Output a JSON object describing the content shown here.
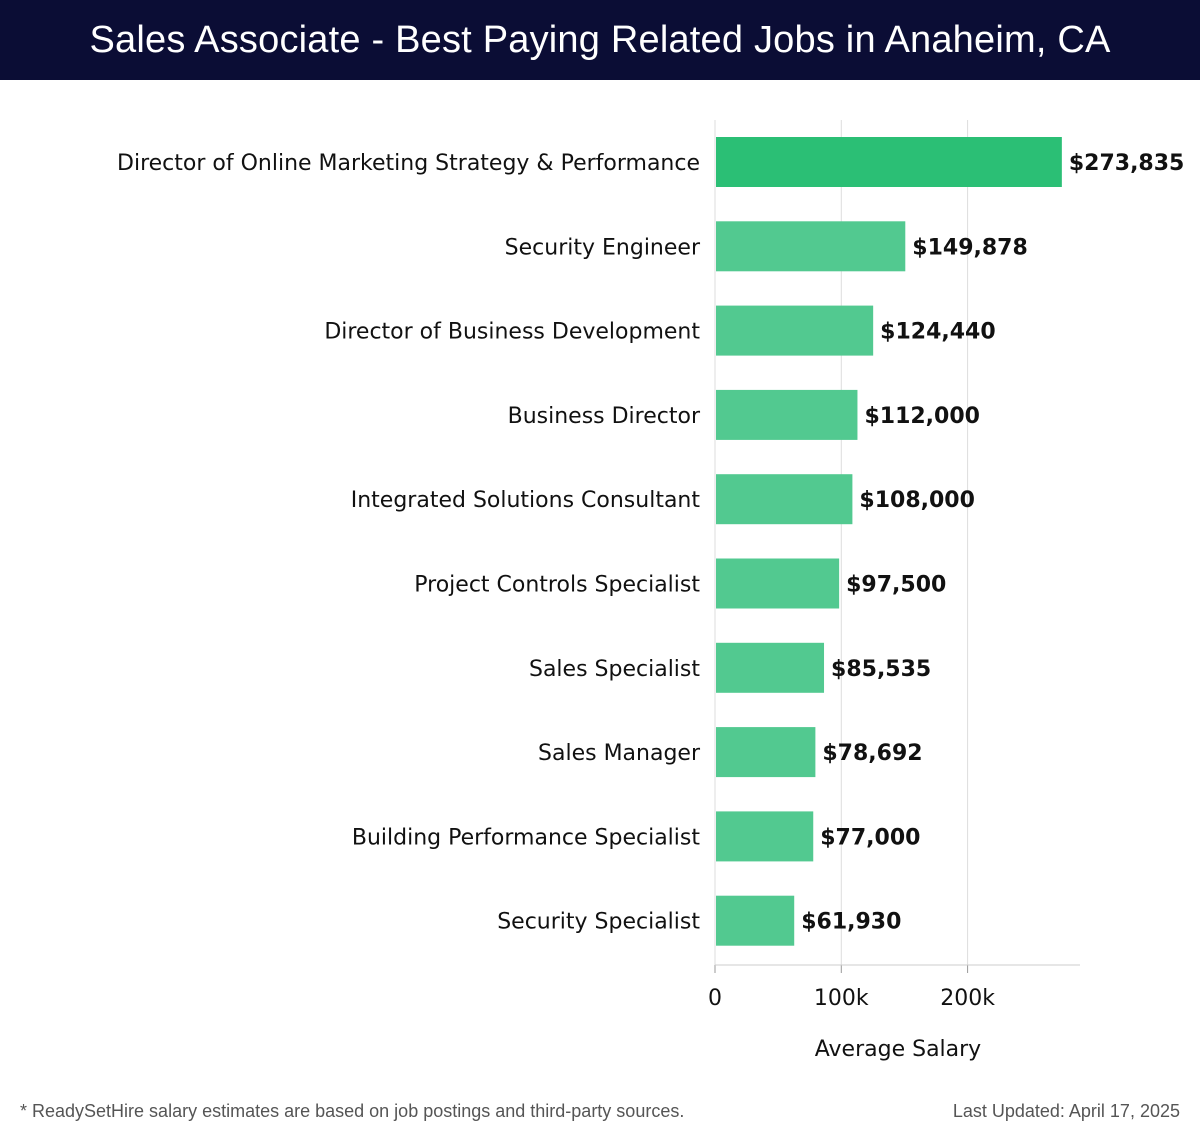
{
  "header": {
    "title": "Sales Associate - Best Paying Related Jobs in Anaheim, CA"
  },
  "colors": {
    "header_bg": "#0b0d35",
    "bar_top": "#2bbf75",
    "bar_other": "#52c990",
    "gridline": "#dddddd"
  },
  "chart_data": {
    "type": "bar",
    "orientation": "horizontal",
    "title": "Sales Associate - Best Paying Related Jobs in Anaheim, CA",
    "xlabel": "Average Salary",
    "ylabel": "",
    "xlim": [
      0,
      289000
    ],
    "x_ticks": [
      0,
      100000,
      200000
    ],
    "x_tick_labels": [
      "0",
      "100k",
      "200k"
    ],
    "grid": true,
    "categories": [
      "Director of Online Marketing Strategy & Performance",
      "Security Engineer",
      "Director of Business Development",
      "Business Director",
      "Integrated Solutions Consultant",
      "Project Controls Specialist",
      "Sales Specialist",
      "Sales Manager",
      "Building Performance Specialist",
      "Security Specialist"
    ],
    "values": [
      273835,
      149878,
      124440,
      112000,
      108000,
      97500,
      85535,
      78692,
      77000,
      61930
    ],
    "value_labels": [
      "$273,835",
      "$149,878",
      "$124,440",
      "$112,000",
      "$108,000",
      "$97,500",
      "$85,535",
      "$78,692",
      "$77,000",
      "$61,930"
    ]
  },
  "footer": {
    "note": "* ReadySetHire salary estimates are based on job postings and third-party sources.",
    "updated": "Last Updated: April 17, 2025"
  }
}
